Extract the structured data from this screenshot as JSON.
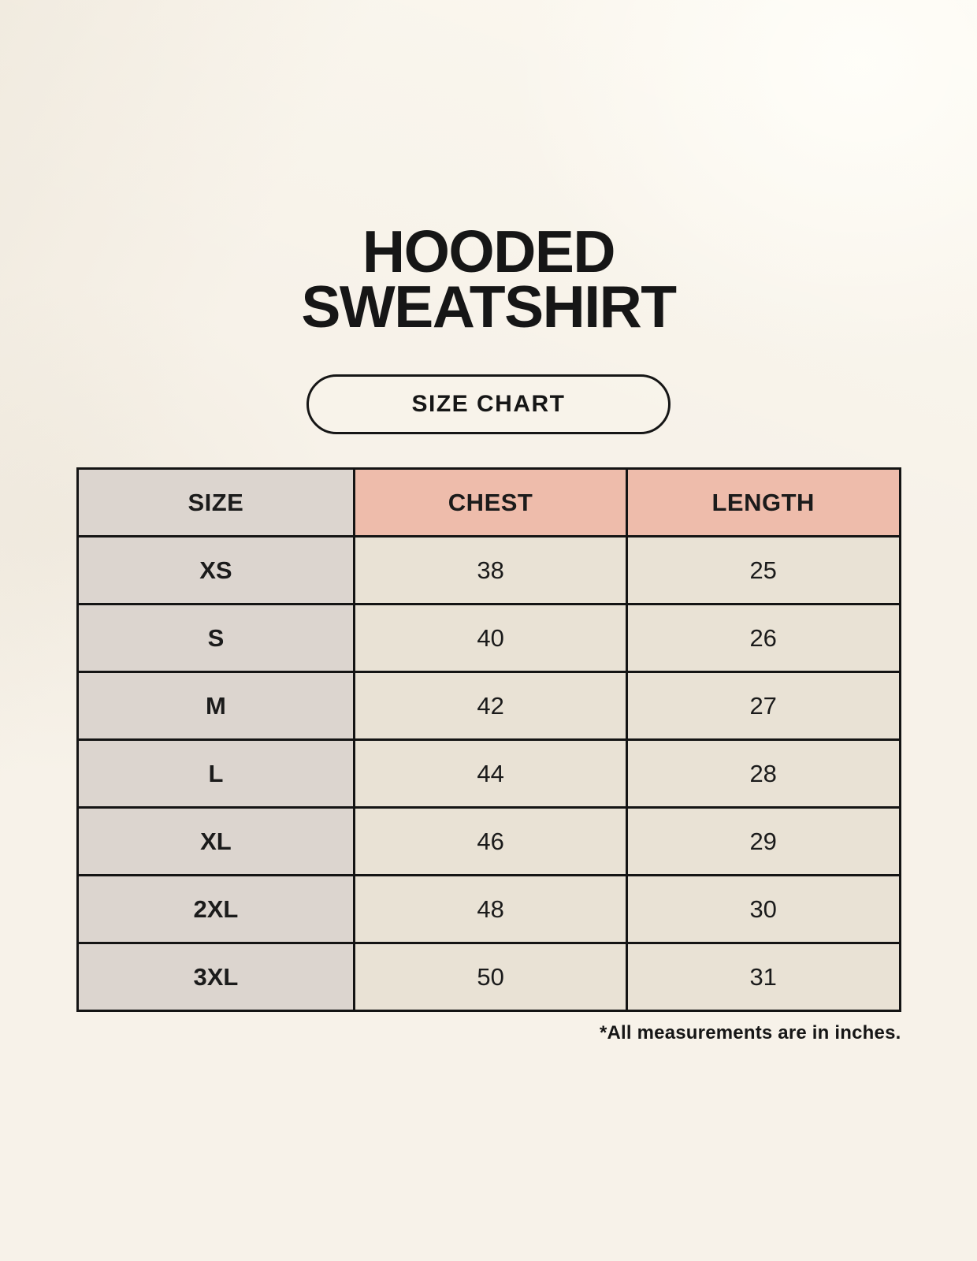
{
  "header": {
    "title_line1": "HOODED",
    "title_line2": "SWEATSHIRT",
    "badge_label": "SIZE CHART"
  },
  "footer": {
    "note": "*All measurements are in inches."
  },
  "colors": {
    "page_background": "#f7f2e9",
    "header_accent_salmon": "#eebcab",
    "size_column_gray": "#dcd5cf",
    "data_cell_cream": "#e9e2d5",
    "table_border": "#141414",
    "text": "#161616"
  },
  "chart_data": {
    "type": "table",
    "title": "HOODED SWEATSHIRT",
    "subtitle": "SIZE CHART",
    "columns": [
      "SIZE",
      "CHEST",
      "LENGTH"
    ],
    "rows": [
      [
        "XS",
        "38",
        "25"
      ],
      [
        "S",
        "40",
        "26"
      ],
      [
        "M",
        "42",
        "27"
      ],
      [
        "L",
        "44",
        "28"
      ],
      [
        "XL",
        "46",
        "29"
      ],
      [
        "2XL",
        "48",
        "30"
      ],
      [
        "3XL",
        "50",
        "31"
      ]
    ],
    "units": "inches",
    "note": "*All measurements are in inches.",
    "layout": {
      "accent_columns": [
        "CHEST",
        "LENGTH"
      ],
      "header_row": true,
      "grid": true
    }
  }
}
